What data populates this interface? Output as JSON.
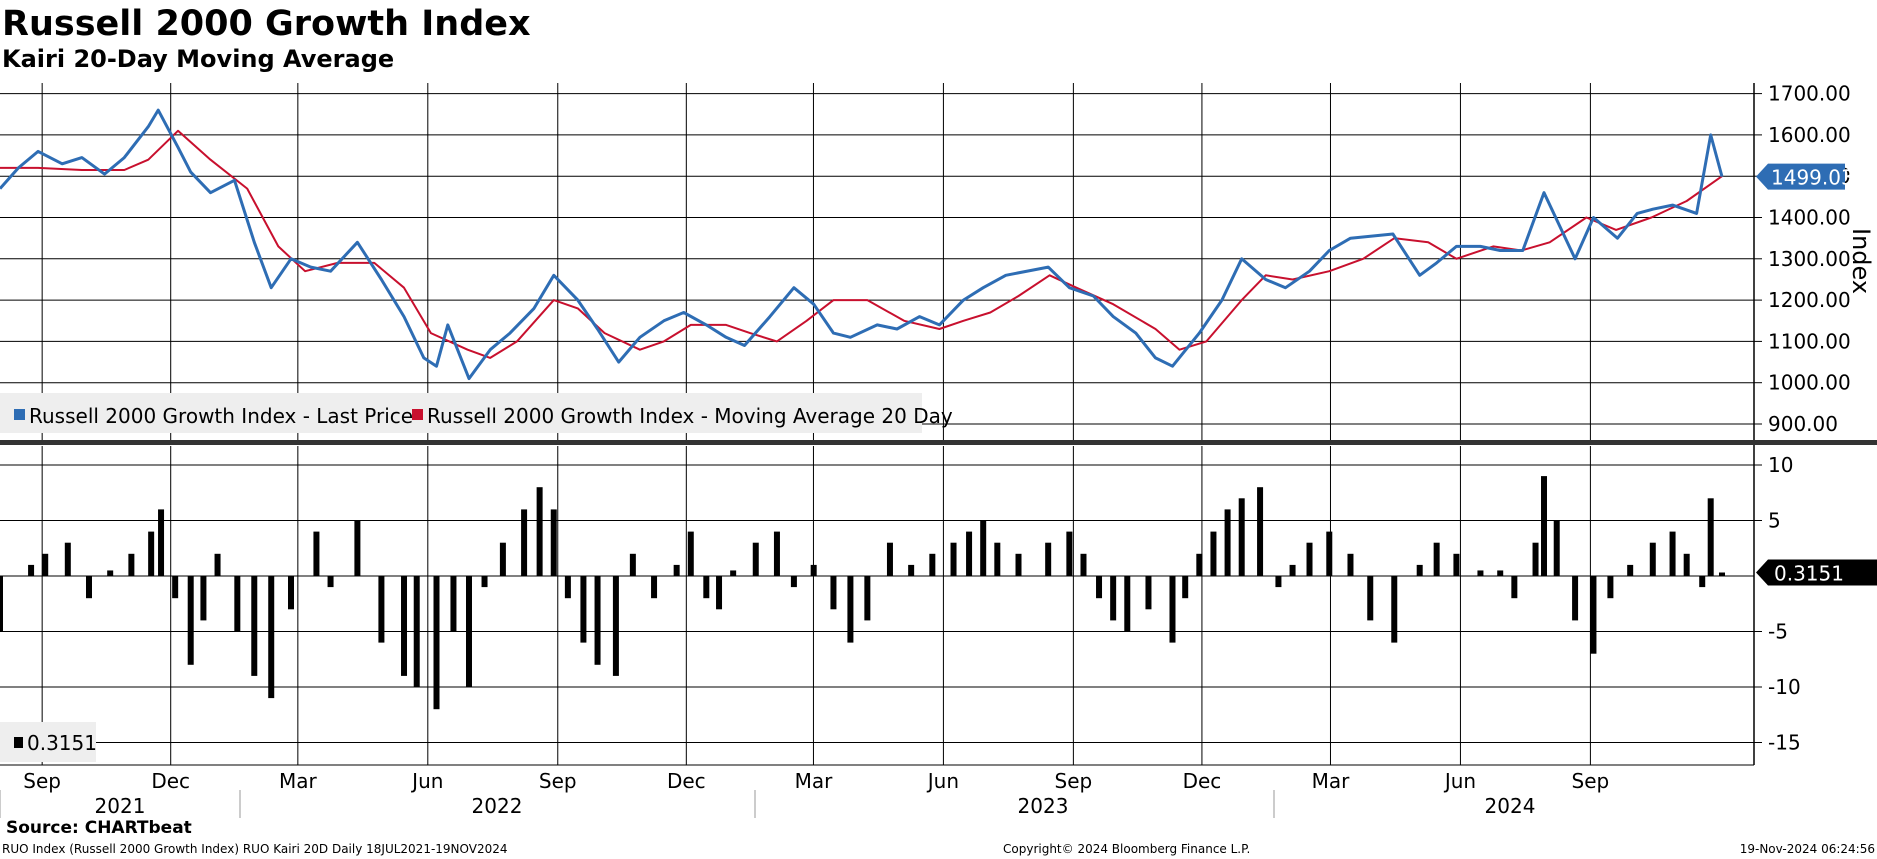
{
  "title": "Russell 2000 Growth Index",
  "subtitle": "Kairi 20-Day Moving Average",
  "source": "Source: CHARTbeat",
  "footer": {
    "left": "RUO Index (Russell 2000 Growth Index) RUO Kairi 20D  Daily 18JUL2021-19NOV2024",
    "center": "Copyright© 2024 Bloomberg Finance L.P.",
    "right": "19-Nov-2024 06:24:56"
  },
  "colors": {
    "price": "#2e6db4",
    "ma": "#c8102e",
    "kairi": "#000000",
    "grid": "#000000"
  },
  "chart_data": [
    {
      "type": "line",
      "ylabel": "Index",
      "ylim": [
        900,
        1700
      ],
      "yticks": [
        900,
        1000,
        1100,
        1200,
        1300,
        1400,
        1500,
        1600,
        1700
      ],
      "last_value_label": "1499.03",
      "legend": [
        "Russell 2000 Growth Index - Last Price",
        "Russell 2000 Growth Index - Moving Average 20 Day"
      ],
      "x_months": [
        "Sep",
        "Dec",
        "Mar",
        "Jun",
        "Sep",
        "Dec",
        "Mar",
        "Jun",
        "Sep",
        "Dec",
        "Mar",
        "Jun",
        "Sep"
      ],
      "x_years": [
        "2021",
        "2022",
        "2023",
        "2024"
      ],
      "series": [
        {
          "name": "Russell 2000 Growth Index - Last Price",
          "x": [
            "2021-07-19",
            "2021-08-01",
            "2021-08-15",
            "2021-09-01",
            "2021-09-15",
            "2021-10-01",
            "2021-10-15",
            "2021-11-01",
            "2021-11-08",
            "2021-11-22",
            "2021-12-01",
            "2021-12-15",
            "2022-01-01",
            "2022-01-15",
            "2022-01-27",
            "2022-02-10",
            "2022-02-24",
            "2022-03-10",
            "2022-03-29",
            "2022-04-15",
            "2022-05-01",
            "2022-05-15",
            "2022-05-24",
            "2022-06-01",
            "2022-06-16",
            "2022-07-01",
            "2022-07-15",
            "2022-08-01",
            "2022-08-15",
            "2022-09-01",
            "2022-09-15",
            "2022-09-30",
            "2022-10-15",
            "2022-11-01",
            "2022-11-15",
            "2022-12-01",
            "2022-12-15",
            "2022-12-28",
            "2023-01-15",
            "2023-02-01",
            "2023-02-15",
            "2023-03-01",
            "2023-03-13",
            "2023-04-01",
            "2023-04-15",
            "2023-05-01",
            "2023-05-15",
            "2023-06-01",
            "2023-06-15",
            "2023-07-01",
            "2023-07-31",
            "2023-08-15",
            "2023-09-01",
            "2023-09-15",
            "2023-10-01",
            "2023-10-15",
            "2023-10-27",
            "2023-11-15",
            "2023-12-01",
            "2023-12-15",
            "2024-01-01",
            "2024-01-15",
            "2024-02-01",
            "2024-02-15",
            "2024-03-01",
            "2024-03-31",
            "2024-04-19",
            "2024-05-01",
            "2024-05-15",
            "2024-06-01",
            "2024-06-15",
            "2024-07-01",
            "2024-07-16",
            "2024-08-07",
            "2024-08-20",
            "2024-09-06",
            "2024-09-20",
            "2024-10-01",
            "2024-10-15",
            "2024-11-01",
            "2024-11-11",
            "2024-11-19"
          ],
          "values": [
            1470,
            1520,
            1560,
            1530,
            1545,
            1505,
            1545,
            1620,
            1660,
            1570,
            1510,
            1460,
            1490,
            1340,
            1230,
            1300,
            1280,
            1270,
            1340,
            1250,
            1160,
            1060,
            1040,
            1140,
            1010,
            1080,
            1120,
            1180,
            1260,
            1200,
            1130,
            1050,
            1110,
            1150,
            1170,
            1140,
            1110,
            1090,
            1160,
            1230,
            1190,
            1120,
            1110,
            1140,
            1130,
            1160,
            1140,
            1200,
            1230,
            1260,
            1280,
            1230,
            1210,
            1160,
            1120,
            1060,
            1040,
            1120,
            1200,
            1300,
            1250,
            1230,
            1270,
            1320,
            1350,
            1360,
            1260,
            1290,
            1330,
            1330,
            1320,
            1320,
            1460,
            1300,
            1400,
            1350,
            1410,
            1420,
            1430,
            1410,
            1600,
            1499
          ]
        },
        {
          "name": "Russell 2000 Growth Index - Moving Average 20 Day",
          "x": [
            "2021-07-19",
            "2021-08-15",
            "2021-09-15",
            "2021-10-15",
            "2021-11-01",
            "2021-11-22",
            "2021-12-15",
            "2022-01-10",
            "2022-02-01",
            "2022-02-20",
            "2022-03-15",
            "2022-04-10",
            "2022-05-01",
            "2022-05-20",
            "2022-06-15",
            "2022-07-01",
            "2022-07-20",
            "2022-08-15",
            "2022-09-01",
            "2022-09-20",
            "2022-10-15",
            "2022-11-01",
            "2022-11-20",
            "2022-12-15",
            "2023-01-01",
            "2023-01-20",
            "2023-02-10",
            "2023-03-01",
            "2023-03-25",
            "2023-04-20",
            "2023-05-15",
            "2023-06-01",
            "2023-06-20",
            "2023-07-10",
            "2023-08-01",
            "2023-08-20",
            "2023-09-15",
            "2023-10-15",
            "2023-11-01",
            "2023-11-20",
            "2023-12-15",
            "2024-01-01",
            "2024-01-20",
            "2024-02-15",
            "2024-03-10",
            "2024-04-01",
            "2024-04-25",
            "2024-05-15",
            "2024-06-10",
            "2024-06-30",
            "2024-07-20",
            "2024-08-15",
            "2024-09-05",
            "2024-09-30",
            "2024-10-25",
            "2024-11-19"
          ],
          "values": [
            1520,
            1520,
            1515,
            1515,
            1540,
            1610,
            1540,
            1470,
            1330,
            1270,
            1290,
            1290,
            1230,
            1120,
            1080,
            1060,
            1100,
            1200,
            1180,
            1120,
            1080,
            1100,
            1140,
            1140,
            1120,
            1100,
            1150,
            1200,
            1200,
            1150,
            1130,
            1150,
            1170,
            1210,
            1260,
            1230,
            1190,
            1130,
            1080,
            1100,
            1200,
            1260,
            1250,
            1270,
            1300,
            1350,
            1340,
            1300,
            1330,
            1320,
            1340,
            1400,
            1370,
            1400,
            1440,
            1500
          ]
        }
      ]
    },
    {
      "type": "bar",
      "ylim": [
        -15,
        10
      ],
      "yticks": [
        10,
        5,
        -5,
        -10,
        -15
      ],
      "ytick_labels": [
        "10",
        "5",
        "-5",
        "-10",
        "-15"
      ],
      "zero_line": true,
      "last_value_label": "0.3151",
      "legend": [
        "0.3151"
      ],
      "series": [
        {
          "name": "0.3151",
          "x": [
            "2021-07-19",
            "2021-08-10",
            "2021-08-20",
            "2021-09-05",
            "2021-09-20",
            "2021-10-05",
            "2021-10-20",
            "2021-11-03",
            "2021-11-10",
            "2021-11-20",
            "2021-12-01",
            "2021-12-10",
            "2021-12-20",
            "2022-01-03",
            "2022-01-15",
            "2022-01-27",
            "2022-02-10",
            "2022-02-28",
            "2022-03-10",
            "2022-03-29",
            "2022-04-15",
            "2022-05-01",
            "2022-05-10",
            "2022-05-24",
            "2022-06-05",
            "2022-06-16",
            "2022-06-27",
            "2022-07-10",
            "2022-07-25",
            "2022-08-05",
            "2022-08-15",
            "2022-08-25",
            "2022-09-05",
            "2022-09-15",
            "2022-09-28",
            "2022-10-10",
            "2022-10-25",
            "2022-11-10",
            "2022-11-20",
            "2022-12-01",
            "2022-12-10",
            "2022-12-20",
            "2023-01-05",
            "2023-01-20",
            "2023-02-01",
            "2023-02-15",
            "2023-03-01",
            "2023-03-13",
            "2023-03-25",
            "2023-04-10",
            "2023-04-25",
            "2023-05-10",
            "2023-05-25",
            "2023-06-05",
            "2023-06-15",
            "2023-06-25",
            "2023-07-10",
            "2023-07-31",
            "2023-08-15",
            "2023-08-25",
            "2023-09-05",
            "2023-09-15",
            "2023-09-25",
            "2023-10-10",
            "2023-10-27",
            "2023-11-05",
            "2023-11-15",
            "2023-11-25",
            "2023-12-05",
            "2023-12-15",
            "2023-12-28",
            "2024-01-10",
            "2024-01-20",
            "2024-02-01",
            "2024-02-15",
            "2024-03-01",
            "2024-03-15",
            "2024-04-01",
            "2024-04-19",
            "2024-05-01",
            "2024-05-15",
            "2024-06-01",
            "2024-06-15",
            "2024-06-25",
            "2024-07-10",
            "2024-07-16",
            "2024-07-25",
            "2024-08-07",
            "2024-08-20",
            "2024-09-01",
            "2024-09-15",
            "2024-10-01",
            "2024-10-15",
            "2024-10-25",
            "2024-11-05",
            "2024-11-11",
            "2024-11-19"
          ],
          "values": [
            -5,
            1,
            2,
            3,
            -2,
            0.5,
            2,
            4,
            6,
            -2,
            -8,
            -4,
            2,
            -5,
            -9,
            -11,
            -3,
            4,
            -1,
            5,
            -6,
            -9,
            -10,
            -12,
            -5,
            -10,
            -1,
            3,
            6,
            8,
            6,
            -2,
            -6,
            -8,
            -9,
            2,
            -2,
            1,
            4,
            -2,
            -3,
            0.5,
            3,
            4,
            -1,
            1,
            -3,
            -6,
            -4,
            3,
            1,
            2,
            3,
            4,
            5,
            3,
            2,
            3,
            4,
            2,
            -2,
            -4,
            -5,
            -3,
            -6,
            -2,
            2,
            4,
            6,
            7,
            8,
            -1,
            1,
            3,
            4,
            2,
            -4,
            -6,
            1,
            3,
            2,
            0.5,
            0.5,
            -2,
            3,
            9,
            5,
            -4,
            -7,
            -2,
            1,
            3,
            4,
            2,
            -1,
            7,
            0.3151
          ]
        }
      ]
    }
  ]
}
